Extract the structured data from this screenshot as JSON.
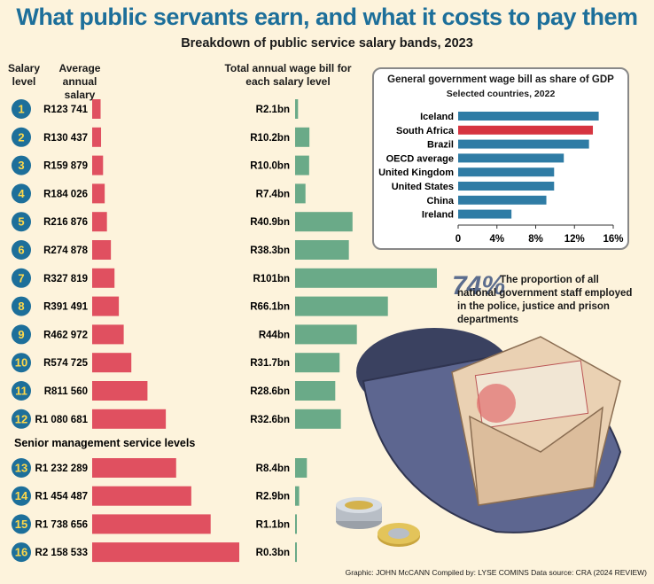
{
  "header": {
    "title": "What public servants earn, and what it costs to pay them",
    "subtitle": "Breakdown of public service salary bands, 2023",
    "col_level": "Salary level",
    "col_salary": "Average annual salary",
    "col_bill": "Total annual wage bill for each salary level",
    "senior_heading": "Senior management service levels"
  },
  "colors": {
    "salary_bar": "#e05060",
    "bill_bar": "#6aaa88",
    "badge": "#1d6f9a",
    "badge_text": "#ffd84a",
    "inset_bar": "#2f7ca5",
    "inset_highlight": "#d63440"
  },
  "chart_data": [
    {
      "type": "bar",
      "orientation": "horizontal",
      "title": "Breakdown of public service salary bands, 2023",
      "categories": [
        "1",
        "2",
        "3",
        "4",
        "5",
        "6",
        "7",
        "8",
        "9",
        "10",
        "11",
        "12",
        "13",
        "14",
        "15",
        "16"
      ],
      "series": [
        {
          "name": "Average annual salary",
          "values": [
            123741,
            130437,
            159879,
            184026,
            216876,
            274878,
            327819,
            391491,
            462972,
            574725,
            811560,
            1080681,
            1232289,
            1454487,
            1738656,
            2158533
          ],
          "labels": [
            "R123 741",
            "R130 437",
            "R159 879",
            "R184 026",
            "R216 876",
            "R274 878",
            "R327 819",
            "R391 491",
            "R462 972",
            "R574 725",
            "R811 560",
            "R1 080 681",
            "R1 232 289",
            "R1 454 487",
            "R1 738 656",
            "R2 158 533"
          ]
        },
        {
          "name": "Total annual wage bill for each salary level",
          "values": [
            2.1,
            10.2,
            10.0,
            7.4,
            40.9,
            38.3,
            101,
            66.1,
            44,
            31.7,
            28.6,
            32.6,
            8.4,
            2.9,
            1.1,
            0.3
          ],
          "labels": [
            "R2.1bn",
            "R10.2bn",
            "R10.0bn",
            "R7.4bn",
            "R40.9bn",
            "R38.3bn",
            "R101bn",
            "R66.1bn",
            "R44bn",
            "R31.7bn",
            "R28.6bn",
            "R32.6bn",
            "R8.4bn",
            "R2.9bn",
            "R1.1bn",
            "R0.3bn"
          ]
        }
      ]
    },
    {
      "type": "bar",
      "orientation": "horizontal",
      "title": "General government wage bill as share of GDP",
      "subtitle": "Selected countries, 2022",
      "categories": [
        "Iceland",
        "South Africa",
        "Brazil",
        "OECD average",
        "United Kingdom",
        "United States",
        "China",
        "Ireland"
      ],
      "values": [
        14.5,
        13.9,
        13.5,
        10.9,
        9.9,
        9.9,
        9.1,
        5.5
      ],
      "highlight": "South Africa",
      "xlim": [
        0,
        16
      ],
      "xticks": [
        "0",
        "4%",
        "8%",
        "12%",
        "16%"
      ]
    }
  ],
  "stat": {
    "value": "74%",
    "text": "The proportion of all national government staff employed in the police, justice and prison departments"
  },
  "credit": "Graphic: JOHN McCANN  Compiled by: LYSE COMINS  Data source: CRA (2024 REVIEW)"
}
